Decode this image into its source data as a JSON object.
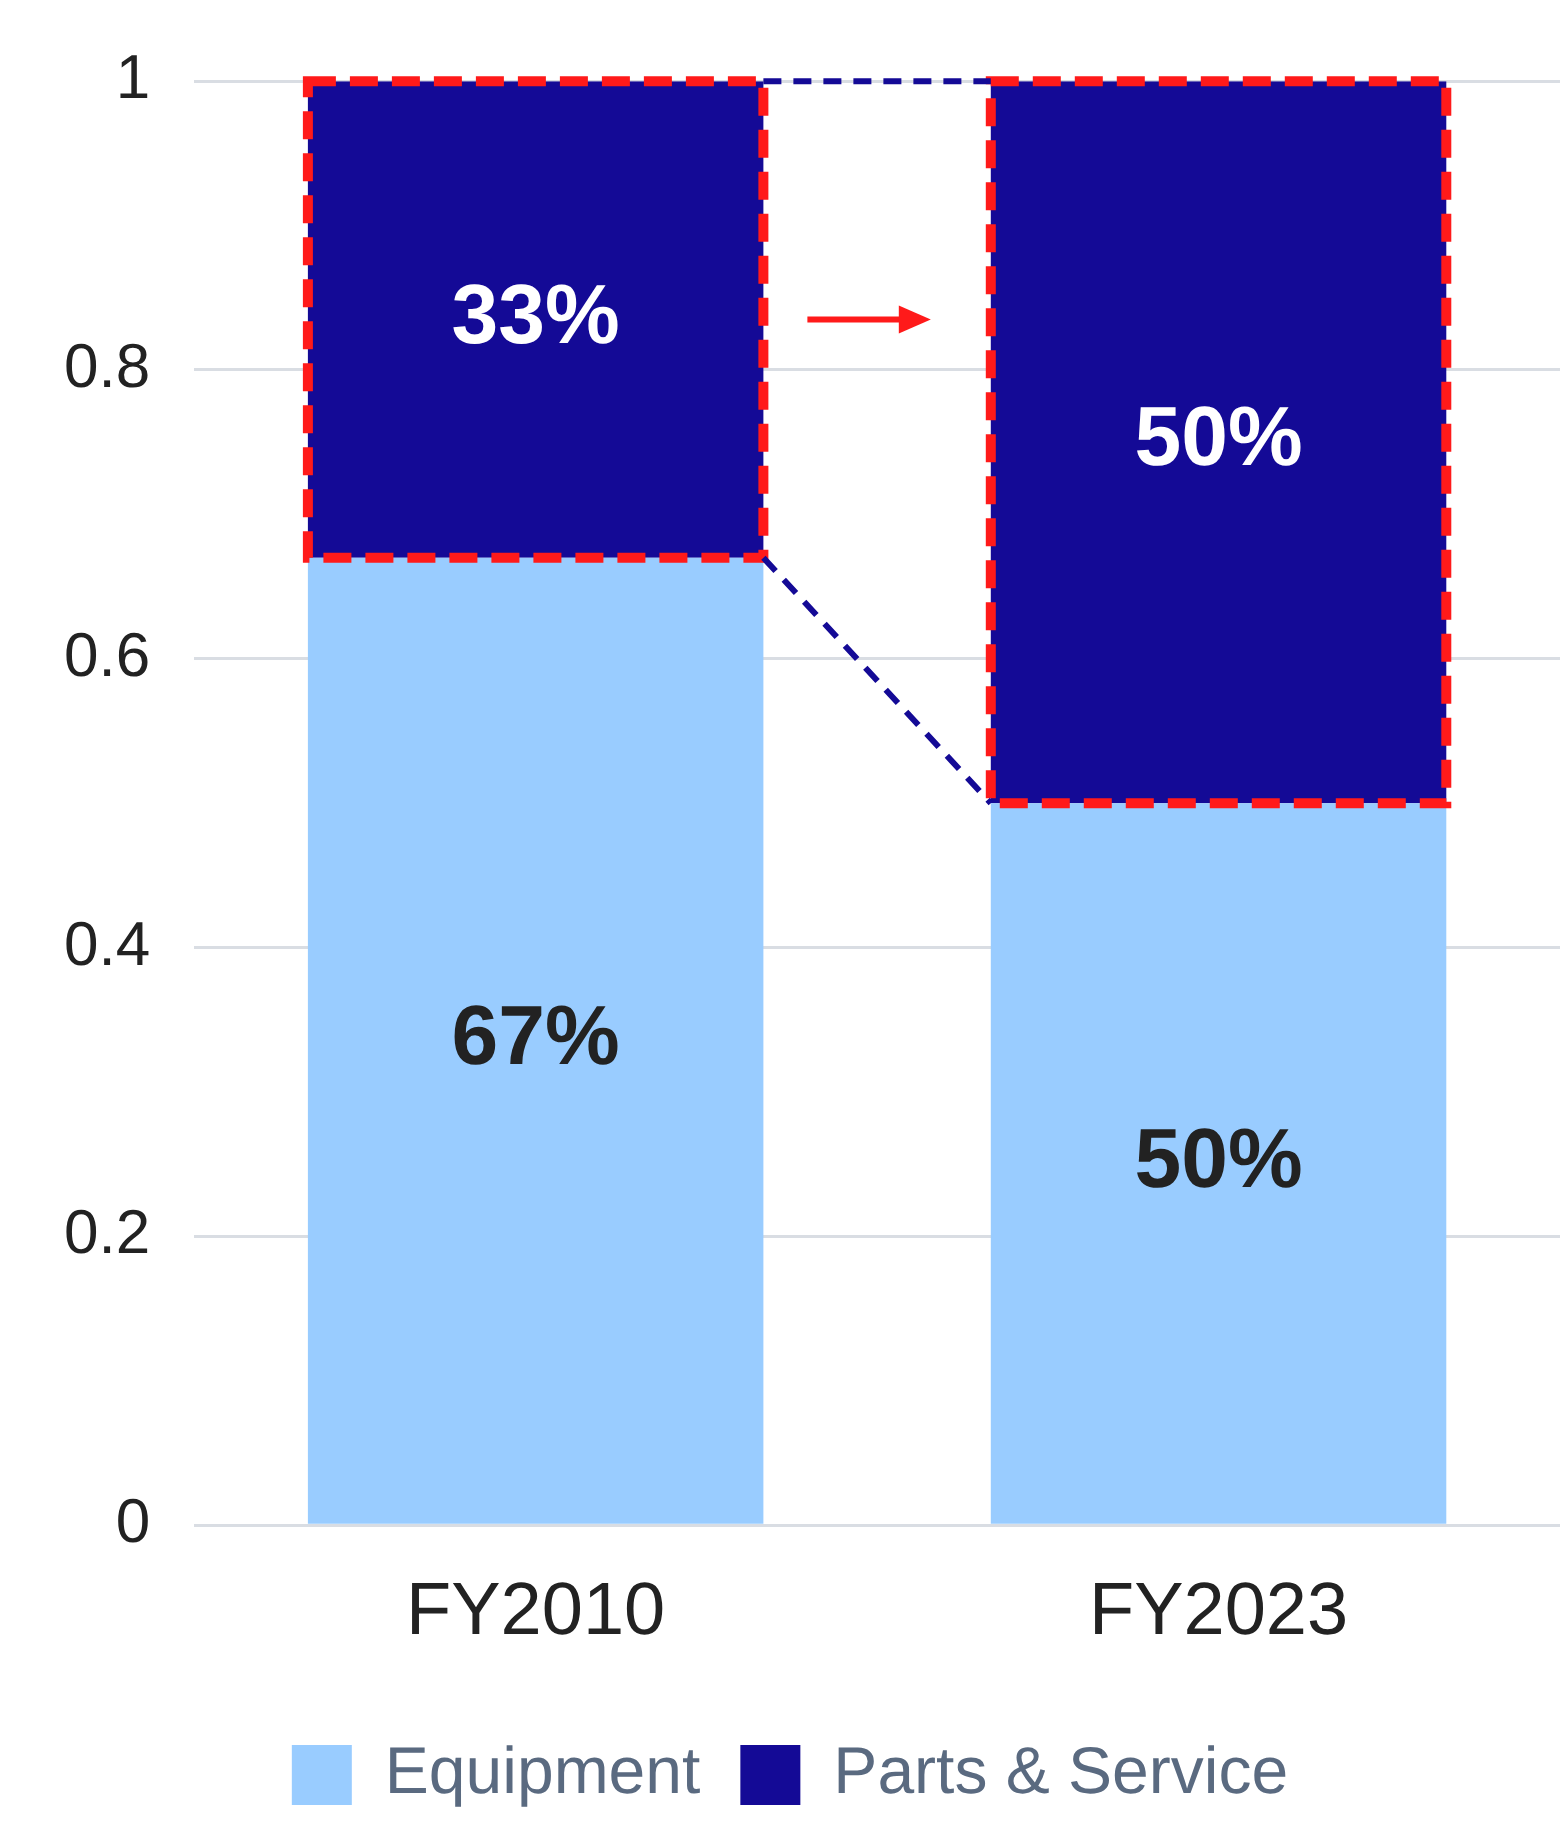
{
  "chart_data": {
    "type": "bar",
    "stacked": true,
    "categories": [
      "FY2010",
      "FY2023"
    ],
    "series": [
      {
        "name": "Equipment",
        "color": "#99ccff",
        "values": [
          0.67,
          0.5
        ],
        "value_labels": [
          "67%",
          "50%"
        ]
      },
      {
        "name": "Parts & Service",
        "color": "#140a96",
        "values": [
          0.33,
          0.5
        ],
        "value_labels": [
          "33%",
          "50%"
        ]
      }
    ],
    "ylim": [
      0,
      1
    ],
    "yticks": [
      0,
      0.2,
      0.4,
      0.6,
      0.8,
      1
    ],
    "grid": "y",
    "legend": "bottom"
  }
}
